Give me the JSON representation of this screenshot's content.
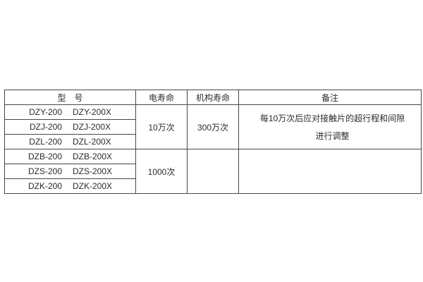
{
  "table": {
    "headers": [
      "型　号",
      "电寿命",
      "机构寿命",
      "备注"
    ],
    "rows": [
      {
        "a": "DZY-200",
        "b": "DZY-200X"
      },
      {
        "a": "DZJ-200",
        "b": "DZJ-200X"
      },
      {
        "a": "DZL-200",
        "b": "DZL-200X"
      },
      {
        "a": "DZB-200",
        "b": "DZB-200X"
      },
      {
        "a": "DZS-200",
        "b": "DZS-200X"
      },
      {
        "a": "DZK-200",
        "b": "DZK-200X"
      }
    ],
    "groups": [
      {
        "electrical_life": "10万次",
        "mechanism_life": "300万次",
        "remark_line1": "每10万次后应对接触片的超行程和间隙",
        "remark_line2": "进行调整"
      },
      {
        "electrical_life": "1000次",
        "mechanism_life": "",
        "remark_line1": "",
        "remark_line2": ""
      }
    ]
  },
  "colors": {
    "background": "#ffffff",
    "border": "#474747",
    "text": "#2b2b2b"
  }
}
